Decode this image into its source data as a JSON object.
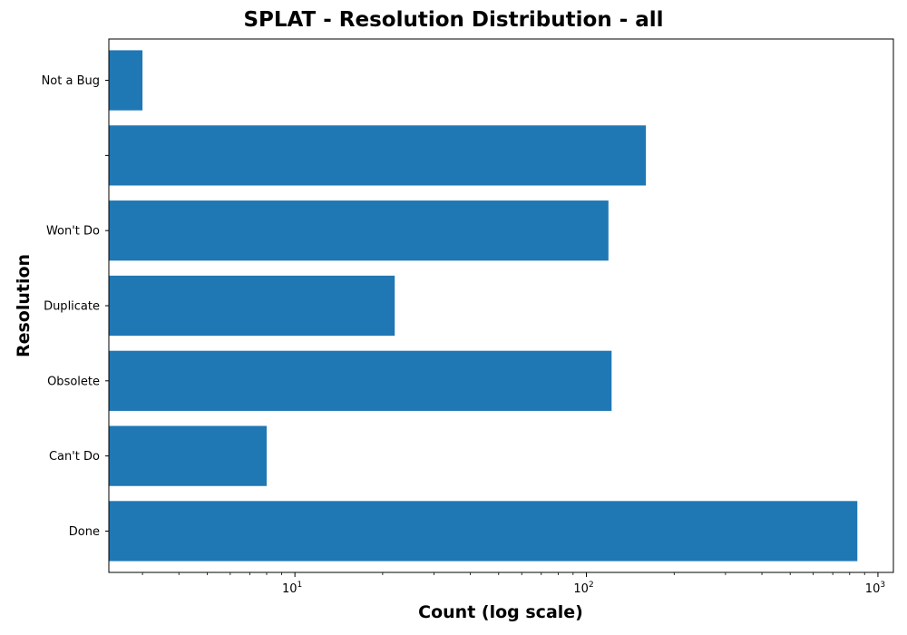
{
  "chart_data": {
    "type": "bar",
    "orientation": "horizontal",
    "title": "SPLAT - Resolution Distribution - all",
    "xlabel": "Count (log scale)",
    "ylabel": "Resolution",
    "x_scale": "log",
    "xlim": [
      2.3,
      1130
    ],
    "x_ticks": [
      10,
      100,
      1000
    ],
    "x_tick_labels": [
      {
        "base": "10",
        "exp": "1"
      },
      {
        "base": "10",
        "exp": "2"
      },
      {
        "base": "10",
        "exp": "3"
      }
    ],
    "categories": [
      "Done",
      "Can't Do",
      "Obsolete",
      "Duplicate",
      "Won't Do",
      "",
      "Not a Bug"
    ],
    "values": [
      850,
      8,
      122,
      22,
      119,
      160,
      3
    ],
    "bar_color": "#1f77b4",
    "grid": false,
    "legend": "none"
  }
}
